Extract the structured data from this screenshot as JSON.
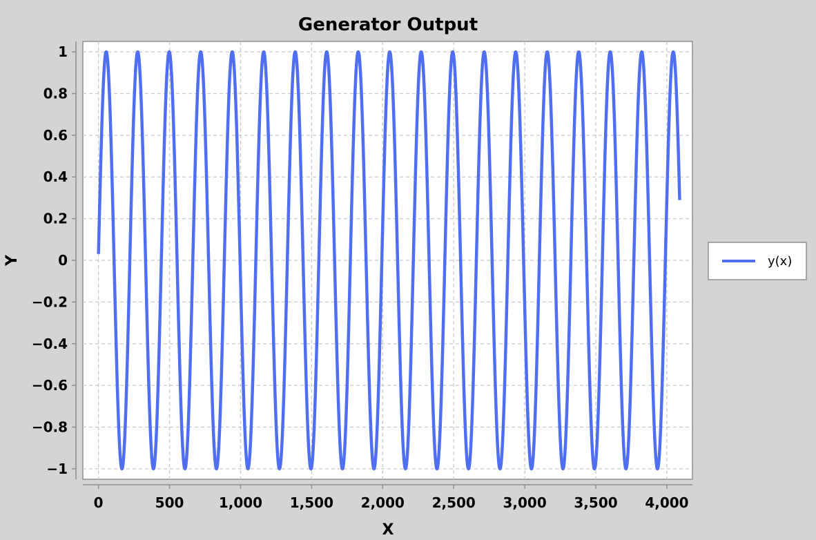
{
  "chart_data": {
    "type": "line",
    "title": "Generator Output",
    "xlabel": "X",
    "ylabel": "Y",
    "xlim": [
      -110,
      4180
    ],
    "ylim": [
      -1.05,
      1.05
    ],
    "x_ticks": [
      0,
      500,
      1000,
      1500,
      2000,
      2500,
      3000,
      3500,
      4000
    ],
    "x_tick_labels": [
      "0",
      "500",
      "1,000",
      "1,500",
      "2,000",
      "2,500",
      "3,000",
      "3,500",
      "4,000"
    ],
    "y_ticks": [
      1,
      0.8,
      0.6,
      0.4,
      0.2,
      0,
      -0.2,
      -0.4,
      -0.6,
      -0.8,
      -1
    ],
    "y_tick_labels": [
      "1",
      "0.8",
      "0.6",
      "0.4",
      "0.2",
      "0",
      "−0.2",
      "−0.4",
      "−0.6",
      "−0.8",
      "−1"
    ],
    "grid": true,
    "legend_position": "right",
    "series": [
      {
        "name": "y(x)",
        "color": "#4f6ff0",
        "function": "sin",
        "x_start": 0,
        "x_end": 4090,
        "period": 221.7,
        "phase": 0.031,
        "amplitude": 1
      }
    ]
  }
}
